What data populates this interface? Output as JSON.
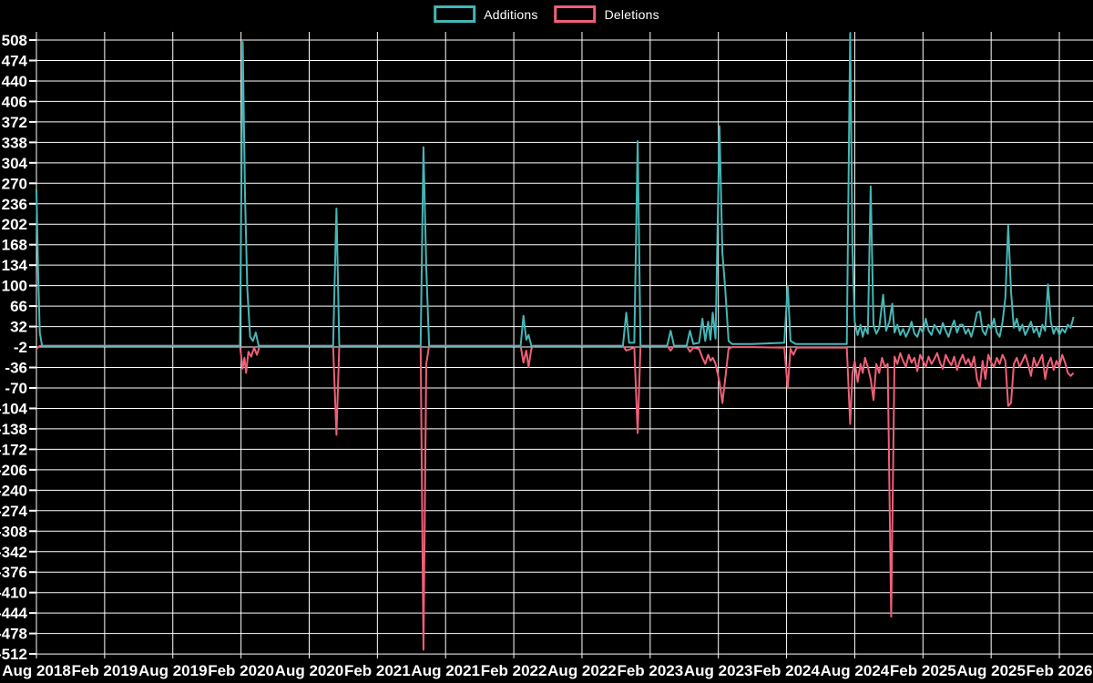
{
  "page": {
    "background": "#000000",
    "grid_color": "#ffffff",
    "text_color": "#ffffff"
  },
  "chart_data": {
    "type": "line",
    "title": "",
    "legend_position": "top-center",
    "grid": true,
    "legend": [
      {
        "label": "Additions",
        "color": "#46b6b6"
      },
      {
        "label": "Deletions",
        "color": "#f05f78"
      }
    ],
    "y_axis": {
      "min": -512,
      "max": 508,
      "step": 34,
      "tick_labels": [
        "508",
        "474",
        "440",
        "406",
        "372",
        "338",
        "304",
        "270",
        "236",
        "202",
        "168",
        "134",
        "100",
        "66",
        "32",
        "-2",
        "-36",
        "-70",
        "-104",
        "-138",
        "-172",
        "-206",
        "-240",
        "-274",
        "-308",
        "-342",
        "-376",
        "-410",
        "-444",
        "-478",
        "-512"
      ]
    },
    "x_axis": {
      "unit": "months",
      "months_per_tick": 6,
      "tick_labels": [
        "Aug 2018",
        "Feb 2019",
        "Aug 2019",
        "Feb 2020",
        "Aug 2020",
        "Feb 2021",
        "Aug 2021",
        "Feb 2022",
        "Aug 2022",
        "Feb 2023",
        "Aug 2023",
        "Feb 2024",
        "Aug 2024",
        "Feb 2025",
        "Aug 2025",
        "Feb 2026"
      ]
    },
    "series": [
      {
        "name": "Additions",
        "color": "#46b6b6",
        "points": [
          [
            0,
            260
          ],
          [
            0.15,
            120
          ],
          [
            0.3,
            22
          ],
          [
            0.5,
            0
          ],
          [
            17.9,
            0
          ],
          [
            18.15,
            505
          ],
          [
            18.35,
            250
          ],
          [
            18.55,
            95
          ],
          [
            18.8,
            15
          ],
          [
            19.05,
            8
          ],
          [
            19.3,
            22
          ],
          [
            19.55,
            0
          ],
          [
            26.1,
            0
          ],
          [
            26.4,
            228
          ],
          [
            26.65,
            0
          ],
          [
            33.8,
            0
          ],
          [
            34.05,
            330
          ],
          [
            34.3,
            130
          ],
          [
            34.55,
            0
          ],
          [
            42.6,
            0
          ],
          [
            42.85,
            50
          ],
          [
            43.1,
            10
          ],
          [
            43.3,
            18
          ],
          [
            43.55,
            0
          ],
          [
            51.6,
            0
          ],
          [
            51.9,
            55
          ],
          [
            52.15,
            5
          ],
          [
            52.6,
            5
          ],
          [
            52.9,
            340
          ],
          [
            53.15,
            0
          ],
          [
            55.5,
            0
          ],
          [
            55.8,
            25
          ],
          [
            56.1,
            0
          ],
          [
            57.2,
            0
          ],
          [
            57.5,
            25
          ],
          [
            57.8,
            3
          ],
          [
            58.3,
            5
          ],
          [
            58.6,
            45
          ],
          [
            58.85,
            8
          ],
          [
            59.1,
            40
          ],
          [
            59.3,
            10
          ],
          [
            59.5,
            55
          ],
          [
            59.75,
            12
          ],
          [
            60.1,
            365
          ],
          [
            60.35,
            155
          ],
          [
            60.6,
            95
          ],
          [
            60.9,
            8
          ],
          [
            61.2,
            3
          ],
          [
            63,
            3
          ],
          [
            65.8,
            5
          ],
          [
            66.1,
            100
          ],
          [
            66.35,
            8
          ],
          [
            66.8,
            3
          ],
          [
            71.3,
            3
          ],
          [
            71.6,
            520
          ],
          [
            71.8,
            160
          ],
          [
            72,
            40
          ],
          [
            72.25,
            18
          ],
          [
            72.5,
            35
          ],
          [
            72.7,
            15
          ],
          [
            72.9,
            30
          ],
          [
            73.15,
            20
          ],
          [
            73.4,
            265
          ],
          [
            73.65,
            35
          ],
          [
            73.9,
            20
          ],
          [
            74.15,
            30
          ],
          [
            74.5,
            85
          ],
          [
            74.75,
            25
          ],
          [
            75.05,
            40
          ],
          [
            75.3,
            70
          ],
          [
            75.5,
            22
          ],
          [
            75.75,
            35
          ],
          [
            76,
            18
          ],
          [
            76.25,
            28
          ],
          [
            76.5,
            15
          ],
          [
            76.75,
            25
          ],
          [
            77,
            40
          ],
          [
            77.25,
            20
          ],
          [
            77.5,
            15
          ],
          [
            77.75,
            30
          ],
          [
            78,
            22
          ],
          [
            78.25,
            45
          ],
          [
            78.5,
            25
          ],
          [
            78.75,
            18
          ],
          [
            79,
            35
          ],
          [
            79.25,
            28
          ],
          [
            79.5,
            20
          ],
          [
            79.75,
            38
          ],
          [
            80,
            25
          ],
          [
            80.25,
            15
          ],
          [
            80.5,
            30
          ],
          [
            80.75,
            42
          ],
          [
            81,
            22
          ],
          [
            81.25,
            35
          ],
          [
            81.5,
            35
          ],
          [
            81.75,
            20
          ],
          [
            82,
            28
          ],
          [
            82.25,
            15
          ],
          [
            82.5,
            32
          ],
          [
            82.75,
            55
          ],
          [
            83,
            57
          ],
          [
            83.25,
            25
          ],
          [
            83.5,
            18
          ],
          [
            83.75,
            35
          ],
          [
            84,
            28
          ],
          [
            84.25,
            45
          ],
          [
            84.5,
            22
          ],
          [
            84.75,
            15
          ],
          [
            85,
            40
          ],
          [
            85.25,
            80
          ],
          [
            85.5,
            200
          ],
          [
            85.75,
            90
          ],
          [
            86,
            30
          ],
          [
            86.25,
            45
          ],
          [
            86.5,
            25
          ],
          [
            86.75,
            35
          ],
          [
            87,
            18
          ],
          [
            87.25,
            28
          ],
          [
            87.5,
            40
          ],
          [
            87.75,
            22
          ],
          [
            88,
            30
          ],
          [
            88.25,
            15
          ],
          [
            88.5,
            35
          ],
          [
            88.75,
            25
          ],
          [
            89,
            102
          ],
          [
            89.25,
            40
          ],
          [
            89.5,
            20
          ],
          [
            89.75,
            32
          ],
          [
            90,
            18
          ],
          [
            90.25,
            28
          ],
          [
            90.5,
            22
          ],
          [
            90.75,
            35
          ],
          [
            91,
            30
          ],
          [
            91.25,
            48
          ]
        ]
      },
      {
        "name": "Deletions",
        "color": "#f05f78",
        "points": [
          [
            0,
            -5
          ],
          [
            0.3,
            0
          ],
          [
            17.9,
            0
          ],
          [
            18.15,
            -38
          ],
          [
            18.3,
            -20
          ],
          [
            18.45,
            -45
          ],
          [
            18.65,
            -10
          ],
          [
            18.9,
            -18
          ],
          [
            19.15,
            -3
          ],
          [
            19.4,
            -15
          ],
          [
            19.65,
            0
          ],
          [
            26.1,
            0
          ],
          [
            26.4,
            -148
          ],
          [
            26.65,
            0
          ],
          [
            33.8,
            0
          ],
          [
            34.05,
            -505
          ],
          [
            34.3,
            -30
          ],
          [
            34.55,
            0
          ],
          [
            42.6,
            0
          ],
          [
            42.85,
            -28
          ],
          [
            43.1,
            -8
          ],
          [
            43.3,
            -35
          ],
          [
            43.55,
            -5
          ],
          [
            43.75,
            0
          ],
          [
            51.6,
            0
          ],
          [
            51.9,
            -8
          ],
          [
            52.6,
            -3
          ],
          [
            52.9,
            -145
          ],
          [
            53.15,
            0
          ],
          [
            55.5,
            0
          ],
          [
            55.8,
            -8
          ],
          [
            56.1,
            0
          ],
          [
            57.2,
            0
          ],
          [
            57.5,
            -10
          ],
          [
            57.8,
            -3
          ],
          [
            58.3,
            -5
          ],
          [
            58.6,
            -20
          ],
          [
            58.85,
            -30
          ],
          [
            59.1,
            -15
          ],
          [
            59.3,
            -25
          ],
          [
            59.5,
            -20
          ],
          [
            59.75,
            -30
          ],
          [
            60.1,
            -60
          ],
          [
            60.35,
            -95
          ],
          [
            60.6,
            -55
          ],
          [
            60.9,
            -5
          ],
          [
            61.2,
            -2
          ],
          [
            63,
            -2
          ],
          [
            65.8,
            -3
          ],
          [
            66.1,
            -70
          ],
          [
            66.35,
            -5
          ],
          [
            66.6,
            -15
          ],
          [
            66.9,
            -3
          ],
          [
            71.3,
            -3
          ],
          [
            71.6,
            -130
          ],
          [
            71.8,
            -45
          ],
          [
            72,
            -25
          ],
          [
            72.25,
            -60
          ],
          [
            72.5,
            -30
          ],
          [
            72.7,
            -45
          ],
          [
            72.9,
            -20
          ],
          [
            73.15,
            -35
          ],
          [
            73.4,
            -55
          ],
          [
            73.65,
            -90
          ],
          [
            73.9,
            -30
          ],
          [
            74.15,
            -45
          ],
          [
            74.4,
            -20
          ],
          [
            74.65,
            -35
          ],
          [
            74.9,
            -30
          ],
          [
            75.2,
            -450
          ],
          [
            75.5,
            -18
          ],
          [
            75.75,
            -30
          ],
          [
            76,
            -12
          ],
          [
            76.25,
            -25
          ],
          [
            76.5,
            -35
          ],
          [
            76.75,
            -15
          ],
          [
            77,
            -28
          ],
          [
            77.25,
            -20
          ],
          [
            77.5,
            -42
          ],
          [
            77.75,
            -15
          ],
          [
            78,
            -25
          ],
          [
            78.25,
            -35
          ],
          [
            78.5,
            -18
          ],
          [
            78.75,
            -30
          ],
          [
            79,
            -22
          ],
          [
            79.25,
            -12
          ],
          [
            79.5,
            -28
          ],
          [
            79.75,
            -38
          ],
          [
            80,
            -15
          ],
          [
            80.25,
            -25
          ],
          [
            80.5,
            -32
          ],
          [
            80.75,
            -18
          ],
          [
            81,
            -40
          ],
          [
            81.25,
            -25
          ],
          [
            81.5,
            -15
          ],
          [
            81.75,
            -30
          ],
          [
            82,
            -22
          ],
          [
            82.25,
            -35
          ],
          [
            82.5,
            -18
          ],
          [
            82.75,
            -55
          ],
          [
            83,
            -70
          ],
          [
            83.25,
            -25
          ],
          [
            83.5,
            -55
          ],
          [
            83.75,
            -15
          ],
          [
            84,
            -28
          ],
          [
            84.25,
            -35
          ],
          [
            84.5,
            -20
          ],
          [
            84.75,
            -30
          ],
          [
            85,
            -15
          ],
          [
            85.25,
            -25
          ],
          [
            85.5,
            -100
          ],
          [
            85.75,
            -95
          ],
          [
            86,
            -30
          ],
          [
            86.25,
            -20
          ],
          [
            86.5,
            -35
          ],
          [
            86.75,
            -25
          ],
          [
            87,
            -15
          ],
          [
            87.25,
            -30
          ],
          [
            87.5,
            -50
          ],
          [
            87.75,
            -20
          ],
          [
            88,
            -35
          ],
          [
            88.25,
            -25
          ],
          [
            88.5,
            -15
          ],
          [
            88.75,
            -55
          ],
          [
            89,
            -30
          ],
          [
            89.25,
            -20
          ],
          [
            89.5,
            -40
          ],
          [
            89.75,
            -25
          ],
          [
            90,
            -35
          ],
          [
            90.25,
            -15
          ],
          [
            90.5,
            -28
          ],
          [
            90.75,
            -45
          ],
          [
            91,
            -50
          ],
          [
            91.25,
            -45
          ]
        ]
      }
    ]
  }
}
